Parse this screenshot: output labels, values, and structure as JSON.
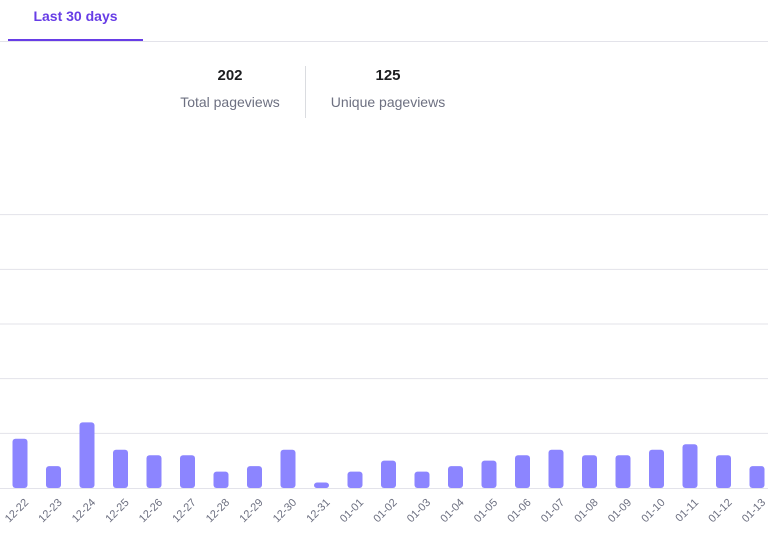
{
  "tabs": [
    {
      "label": "Last 30 days",
      "active": true
    }
  ],
  "stats": {
    "total_pageviews": {
      "value": "202",
      "label": "Total pageviews"
    },
    "unique_pageviews": {
      "value": "125",
      "label": "Unique pageviews"
    }
  },
  "colors": {
    "accent": "#673de6",
    "bar": "#8c85ff",
    "grid": "#e3e3ea",
    "tick_text": "#6d7081"
  },
  "chart_data": {
    "type": "bar",
    "categories": [
      "12-22",
      "12-23",
      "12-24",
      "12-25",
      "12-26",
      "12-27",
      "12-28",
      "12-29",
      "12-30",
      "12-31",
      "01-01",
      "01-02",
      "01-03",
      "01-04",
      "01-05",
      "01-06",
      "01-07",
      "01-08",
      "01-09",
      "01-10",
      "01-11",
      "01-12",
      "01-13"
    ],
    "values": [
      9,
      4,
      12,
      7,
      6,
      6,
      3,
      4,
      7,
      1,
      3,
      5,
      3,
      4,
      5,
      6,
      7,
      6,
      6,
      7,
      8,
      6,
      4
    ],
    "ylim": [
      0,
      60
    ],
    "grid": true
  }
}
